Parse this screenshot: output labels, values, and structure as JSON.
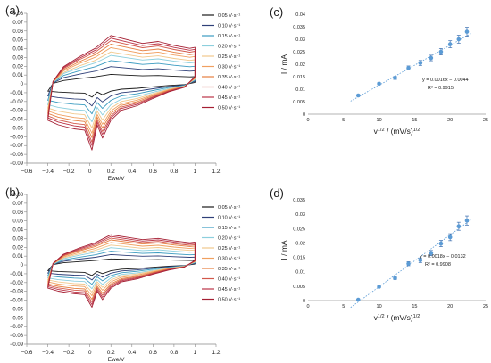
{
  "figure": {
    "panel_labels": {
      "a": "(a)",
      "b": "(b)",
      "c": "(c)",
      "d": "(d)"
    }
  },
  "chart_data": [
    {
      "id": "a",
      "type": "line",
      "xlabel": "Ewe/V",
      "ylabel": "I/mA",
      "xlim": [
        -0.6,
        1.2
      ],
      "ylim": [
        -0.09,
        0.08
      ],
      "xticks": [
        -0.6,
        -0.4,
        -0.2,
        0,
        0.2,
        0.4,
        0.6,
        0.8,
        1,
        1.2
      ],
      "xtick_labels": [
        "−0.6",
        "−0.4",
        "−0.2",
        "0",
        "0.2",
        "0.4",
        "0.6",
        "0.8",
        "1",
        "1.2"
      ],
      "yticks": [
        0.08,
        0.07,
        0.06,
        0.05,
        0.04,
        0.03,
        0.02,
        0.01,
        0,
        -0.01,
        -0.02,
        -0.03,
        -0.04,
        -0.05,
        -0.06,
        -0.07,
        -0.08,
        -0.09
      ],
      "ytick_labels": [
        "0.08",
        "0.07",
        "0.06",
        "0.05",
        "0.04",
        "0.03",
        "0.02",
        "0.01",
        "0",
        "−0.01",
        "−0.02",
        "−0.03",
        "−0.04",
        "−0.05",
        "−0.06",
        "−0.07",
        "−0.08",
        "−0.09"
      ],
      "grid": false,
      "legend_position": "right",
      "legend": [
        "0.05 V·s⁻¹",
        "0.10 V·s⁻¹",
        "0.15 V·s⁻¹",
        "0.20 V·s⁻¹",
        "0.25 V·s⁻¹",
        "0.30 V·s⁻¹",
        "0.35 V·s⁻¹",
        "0.40 V·s⁻¹",
        "0.45 V·s⁻¹",
        "0.50 V·s⁻¹"
      ],
      "series_colors": [
        "#1b1b1b",
        "#2e3f78",
        "#3a9bc0",
        "#8ccfdd",
        "#f1c88c",
        "#f0a060",
        "#e57f40",
        "#d2584a",
        "#bb3347",
        "#a51f33"
      ],
      "peaks": {
        "anodic_max": [
          0.011,
          0.02,
          0.027,
          0.033,
          0.037,
          0.042,
          0.046,
          0.05,
          0.053,
          0.056
        ],
        "cathodic_min": [
          -0.015,
          -0.025,
          -0.034,
          -0.043,
          -0.05,
          -0.056,
          -0.061,
          -0.066,
          -0.07,
          -0.075
        ]
      }
    },
    {
      "id": "b",
      "type": "line",
      "xlabel": "Ewe/V",
      "ylabel": "I/mA",
      "xlim": [
        -0.6,
        1.2
      ],
      "ylim": [
        -0.09,
        0.08
      ],
      "xticks": [
        -0.6,
        -0.4,
        -0.2,
        0,
        0.2,
        0.4,
        0.6,
        0.8,
        1,
        1.2
      ],
      "xtick_labels": [
        "−0.6",
        "−0.4",
        "−0.2",
        "0",
        "0.2",
        "0.4",
        "0.6",
        "0.8",
        "1",
        "1.2"
      ],
      "yticks": [
        0.08,
        0.07,
        0.06,
        0.05,
        0.04,
        0.03,
        0.02,
        0.01,
        0,
        -0.01,
        -0.02,
        -0.03,
        -0.04,
        -0.05,
        -0.06,
        -0.07,
        -0.08,
        -0.09
      ],
      "ytick_labels": [
        "0.08",
        "0.07",
        "0.06",
        "0.05",
        "0.04",
        "0.03",
        "0.02",
        "0.01",
        "0",
        "−0.01",
        "−0.02",
        "−0.03",
        "−0.04",
        "−0.05",
        "−0.06",
        "−0.07",
        "−0.08",
        "−0.09"
      ],
      "grid": false,
      "legend_position": "right",
      "legend": [
        "0.05 V·s⁻¹",
        "0.10 V·s⁻¹",
        "0.15 V·s⁻¹",
        "0.20 V·s⁻¹",
        "0.25 V·s⁻¹",
        "0.30 V·s⁻¹",
        "0.35 V·s⁻¹",
        "0.40 V·s⁻¹",
        "0.45 V·s⁻¹",
        "0.50 V·s⁻¹"
      ],
      "series_colors": [
        "#1b1b1b",
        "#2e3f78",
        "#3a9bc0",
        "#8ccfdd",
        "#f1c88c",
        "#f0a060",
        "#e57f40",
        "#d2584a",
        "#bb3347",
        "#a51f33"
      ],
      "peaks": {
        "anodic_max": [
          0.007,
          0.012,
          0.016,
          0.02,
          0.023,
          0.026,
          0.029,
          0.031,
          0.033,
          0.035
        ],
        "cathodic_min": [
          -0.012,
          -0.017,
          -0.022,
          -0.027,
          -0.031,
          -0.035,
          -0.039,
          -0.042,
          -0.045,
          -0.048
        ]
      }
    },
    {
      "id": "c",
      "type": "scatter",
      "xlabel": "v",
      "xlabel_parts": [
        "v",
        "1/2",
        " / (mV/s)",
        "1/2"
      ],
      "ylabel": "I / mA",
      "xlim": [
        0,
        25
      ],
      "ylim": [
        0,
        0.04
      ],
      "xticks": [
        0,
        5,
        10,
        15,
        20,
        25
      ],
      "xtick_labels": [
        "0",
        "5",
        "10",
        "15",
        "20",
        "25"
      ],
      "yticks": [
        0,
        0.005,
        0.01,
        0.015,
        0.02,
        0.025,
        0.03,
        0.035,
        0.04
      ],
      "ytick_labels": [
        "0",
        "0.005",
        "0.01",
        "0.015",
        "0.02",
        "0.025",
        "0.03",
        "0.035",
        "0.04"
      ],
      "grid": false,
      "x": [
        7.07,
        10.0,
        12.25,
        14.14,
        15.81,
        17.32,
        18.71,
        20.0,
        21.21,
        22.36
      ],
      "y": [
        0.0075,
        0.0122,
        0.0145,
        0.0185,
        0.0205,
        0.0225,
        0.025,
        0.028,
        0.03,
        0.033
      ],
      "err": [
        0.0003,
        0.0004,
        0.0006,
        0.0008,
        0.001,
        0.0011,
        0.0013,
        0.0014,
        0.0016,
        0.0018
      ],
      "fit": {
        "slope": 0.0016,
        "intercept": -0.0044
      },
      "equation": "y = 0.0016x − 0.0044",
      "r2": "R² = 0.9915"
    },
    {
      "id": "d",
      "type": "scatter",
      "xlabel": "v",
      "xlabel_parts": [
        "v",
        "1/2",
        " / (mV/s)",
        "1/2"
      ],
      "ylabel": "I / mA",
      "xlim": [
        0,
        25
      ],
      "ylim": [
        0,
        0.035
      ],
      "xticks": [
        0,
        5,
        10,
        15,
        20,
        25
      ],
      "xtick_labels": [
        "0",
        "5",
        "10",
        "15",
        "20",
        "25"
      ],
      "yticks": [
        0,
        0.005,
        0.01,
        0.015,
        0.02,
        0.025,
        0.03,
        0.035
      ],
      "ytick_labels": [
        "0",
        "0.005",
        "0.01",
        "0.015",
        "0.02",
        "0.025",
        "0.03",
        "0.035"
      ],
      "grid": false,
      "x": [
        7.07,
        10.0,
        12.25,
        14.14,
        15.81,
        17.32,
        18.71,
        20.0,
        21.21,
        22.36
      ],
      "y": [
        0.0003,
        0.0048,
        0.0078,
        0.0128,
        0.014,
        0.0165,
        0.0198,
        0.022,
        0.0258,
        0.0278
      ],
      "err": [
        0.0002,
        0.0003,
        0.0005,
        0.0007,
        0.0008,
        0.0009,
        0.0011,
        0.0012,
        0.0014,
        0.0016
      ],
      "fit": {
        "slope": 0.0018,
        "intercept": -0.0132
      },
      "equation": "y = 0.0018x − 0.0132",
      "r2": "R² = 0.9908"
    }
  ]
}
